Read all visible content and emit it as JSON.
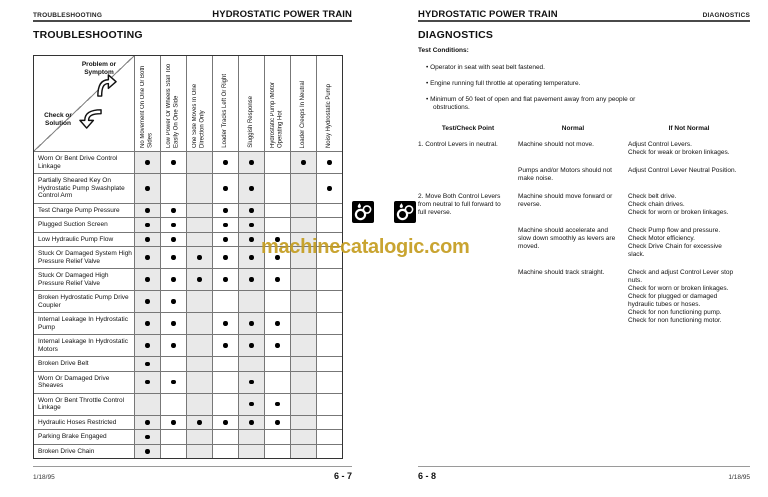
{
  "watermark": {
    "text": "machinecatalogic.com",
    "color": "#c59e22"
  },
  "left_page": {
    "running_header": {
      "section": "TROUBLESHOOTING",
      "chapter": "HYDROSTATIC POWER TRAIN"
    },
    "title": "TROUBLESHOOTING",
    "matrix": {
      "corner_top": "Problem or Symptom",
      "corner_bottom": "Check or Solution",
      "columns": [
        "No Movement On One Or Both Sides",
        "Low Power Or Wheels Stall Too Easily On One Side",
        "One Side Moves In One Direction Only",
        "Loader Tracks Left Or Right",
        "Sluggish Response",
        "Hydrostatic Pump /Motor Operating Hot",
        "Loader Creeps In Neutral",
        "Noisy Hydrostatic Pump"
      ],
      "rows": [
        {
          "label": "Worn Or Bent Drive Control Linkage",
          "dots": [
            1,
            2,
            4,
            5,
            7,
            8
          ]
        },
        {
          "label": "Partially Sheared Key On Hydrostatic Pump Swashplate Control Arm",
          "dots": [
            1,
            4,
            5,
            8
          ]
        },
        {
          "label": "Test Charge Pump Pressure",
          "dots": [
            1,
            2,
            4,
            5
          ]
        },
        {
          "label": "Plugged Suction Screen",
          "dots": [
            1,
            2,
            4,
            5
          ]
        },
        {
          "label": "Low Hydraulic Pump Flow",
          "dots": [
            1,
            2,
            4,
            5,
            6
          ]
        },
        {
          "label": "Stuck Or Damaged System High Pressure Relief Valve",
          "dots": [
            1,
            2,
            3,
            4,
            5,
            6
          ]
        },
        {
          "label": "Stuck Or Damaged High Pressure Relief Valve",
          "dots": [
            1,
            2,
            3,
            4,
            5,
            6
          ]
        },
        {
          "label": "Broken Hydrostatic Pump Drive Coupler",
          "dots": [
            1,
            2
          ]
        },
        {
          "label": "Internal Leakage In Hydrostatic Pump",
          "dots": [
            1,
            2,
            4,
            5,
            6
          ]
        },
        {
          "label": "Internal Leakage In Hydrostatic Motors",
          "dots": [
            1,
            2,
            4,
            5,
            6
          ]
        },
        {
          "label": "Broken Drive Belt",
          "dots": [
            1
          ]
        },
        {
          "label": "Worn Or Damaged Drive Sheaves",
          "dots": [
            1,
            2,
            5
          ]
        },
        {
          "label": "Worn Or Bent Throttle Control Linkage",
          "dots": [
            5,
            6
          ]
        },
        {
          "label": "Hydraulic Hoses Restricted",
          "dots": [
            1,
            2,
            3,
            4,
            5,
            6
          ]
        },
        {
          "label": "Parking Brake Engaged",
          "dots": [
            1
          ]
        },
        {
          "label": "Broken Drive Chain",
          "dots": [
            1
          ]
        }
      ]
    },
    "footer": {
      "date": "1/18/95",
      "page": "6 - 7"
    }
  },
  "right_page": {
    "running_header": {
      "chapter": "HYDROSTATIC POWER TRAIN",
      "section": "DIAGNOSTICS"
    },
    "title": "DIAGNOSTICS",
    "test_conditions": {
      "heading": "Test Conditions:",
      "bullets": [
        "Operator in seat with seat belt fastened.",
        "Engine running full throttle at operating temperature.",
        "Minimum of 50 feet of open and flat pavement away from any people or obstructions."
      ]
    },
    "table": {
      "headers": [
        "Test/Check Point",
        "Normal",
        "If Not Normal"
      ],
      "rows": [
        {
          "check": "1. Control Levers in neutral.",
          "normal": "Machine should not move.",
          "if_not": [
            "Adjust Control Levers.",
            "Check for weak or broken linkages."
          ]
        },
        {
          "check": "",
          "normal": "Pumps and/or Motors should not make noise.",
          "if_not": [
            "Adjust Control Lever Neutral Position."
          ]
        },
        {
          "check": "2. Move Both Control Levers from neutral to full forward to full reverse.",
          "normal": "Machine should move forward or reverse.",
          "if_not": [
            "Check belt drive.",
            "Check chain drives.",
            "Check for worn or broken linkages."
          ]
        },
        {
          "check": "",
          "normal": "Machine should accelerate and slow down smoothly as levers are moved.",
          "if_not": [
            "Check Pump flow and pressure.",
            "Check Motor efficiency.",
            "Check Drive Chain for excessive slack."
          ]
        },
        {
          "check": "",
          "normal": "Machine should track straight.",
          "if_not": [
            "Check and adjust Control Lever stop nuts.",
            "Check for worn or broken linkages.",
            "Check for plugged or damaged hydraulic tubes or hoses.",
            "Check for non functioning pump.",
            "Check for non functioning motor."
          ]
        }
      ]
    },
    "footer": {
      "page": "6 - 8",
      "date": "1/18/95"
    }
  }
}
